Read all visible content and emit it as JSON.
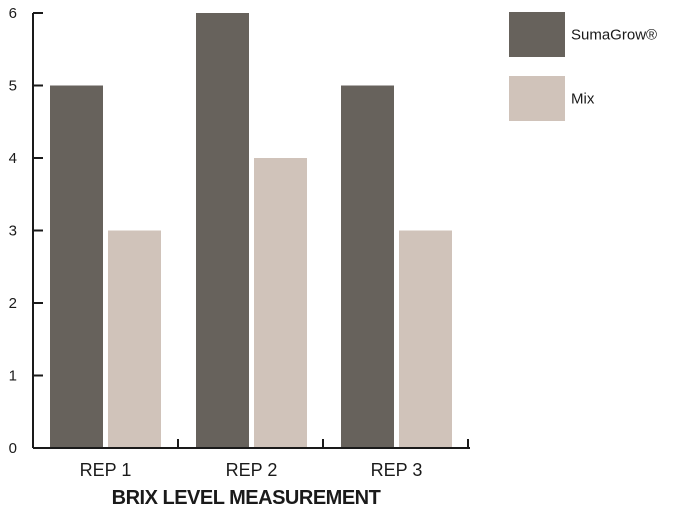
{
  "chart_data": {
    "type": "bar",
    "title": "BRIX LEVEL MEASUREMENT",
    "xlabel": "",
    "ylabel": "",
    "categories": [
      "REP 1",
      "REP 2",
      "REP 3"
    ],
    "series": [
      {
        "name": "SumaGrow®",
        "values": [
          5,
          6,
          5
        ],
        "color": "#67625c"
      },
      {
        "name": "Mix",
        "values": [
          3,
          4,
          3
        ],
        "color": "#d0c3ba"
      }
    ],
    "ylim": [
      0,
      6
    ],
    "yticks": [
      "0",
      "1",
      "2",
      "3",
      "4",
      "5",
      "6"
    ],
    "grid": false,
    "legend_position": "top-right"
  }
}
